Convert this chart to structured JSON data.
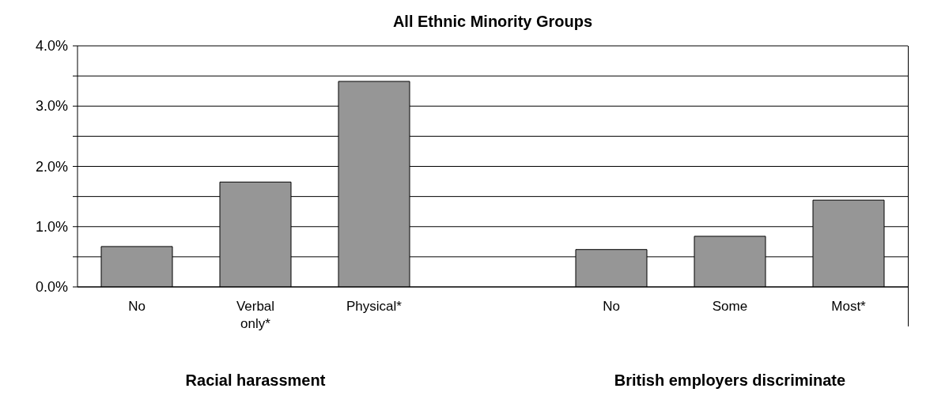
{
  "chart_data": {
    "type": "bar",
    "title": "All Ethnic Minority Groups",
    "categories": [
      "No",
      "Verbal only*",
      "Physical*",
      null,
      "No",
      "Some",
      "Most*"
    ],
    "values": [
      0.67,
      1.74,
      3.41,
      null,
      0.62,
      0.84,
      1.44
    ],
    "color": "#969696",
    "ylim": [
      0,
      4
    ],
    "yticks": [
      {
        "value": 0,
        "label": "0.0%"
      },
      {
        "value": 0.5,
        "label": null
      },
      {
        "value": 1,
        "label": "1.0%"
      },
      {
        "value": 1.5,
        "label": null
      },
      {
        "value": 2,
        "label": "2.0%"
      },
      {
        "value": 2.5,
        "label": null
      },
      {
        "value": 3,
        "label": "3.0%"
      },
      {
        "value": 3.5,
        "label": null
      },
      {
        "value": 4,
        "label": "4.0%"
      }
    ],
    "grid": "y",
    "annotations": [
      "Racial harassment",
      "British employers discriminate"
    ]
  }
}
